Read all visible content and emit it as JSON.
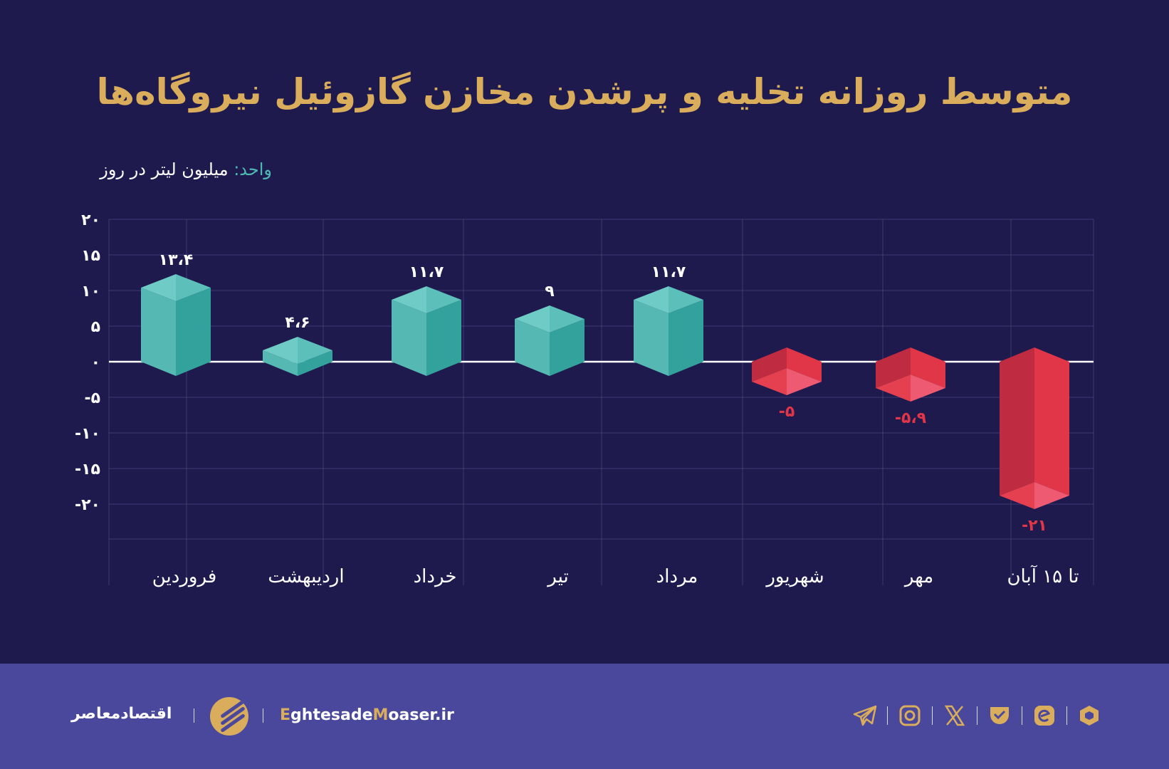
{
  "title": "متوسط روزانه تخلیه و پرشدن مخازن گازوئیل نیروگاه‌ها",
  "unit_key": "واحد:",
  "unit_value": "میلیون لیتر در روز",
  "colors": {
    "background": "#1e1a4d",
    "footer": "#4a489c",
    "accent": "#d9ad5b",
    "positive": "#4fbab3",
    "negative": "#e03648"
  },
  "chart_data": {
    "type": "bar",
    "style": "3d-box",
    "title": "متوسط روزانه تخلیه و پرشدن مخازن گازوئیل نیروگاه‌ها",
    "ylabel": "واحد: میلیون لیتر در روز",
    "categories": [
      "فروردین",
      "اردیبهشت",
      "خرداد",
      "تیر",
      "مرداد",
      "شهریور",
      "مهر",
      "تا ۱۵ آبان"
    ],
    "values": [
      13.4,
      4.6,
      11.7,
      9,
      11.7,
      -5,
      -5.9,
      -21
    ],
    "data_labels": [
      "۱۳،۴",
      "۴،۶",
      "۱۱،۷",
      "۹",
      "۱۱،۷",
      "-۵",
      "-۵،۹",
      "-۲۱"
    ],
    "ylim": [
      -25,
      20
    ],
    "yticks": [
      20,
      15,
      10,
      5,
      0,
      -5,
      -10,
      -15,
      -20
    ],
    "ytick_labels": [
      "۲۰",
      "۱۵",
      "۱۰",
      "۵",
      "۰",
      "-۵",
      "-۱۰",
      "-۱۵",
      "-۲۰"
    ],
    "grid": true
  },
  "footer": {
    "brand": "اقتصادمعاصر",
    "site_e": "E",
    "site_mid": "ghtesade",
    "site_m": "M",
    "site_end": "oaser.ir",
    "icons": [
      "telegram-icon",
      "instagram-icon",
      "x-icon",
      "bale-icon",
      "eitaa-icon",
      "rubika-icon"
    ]
  }
}
